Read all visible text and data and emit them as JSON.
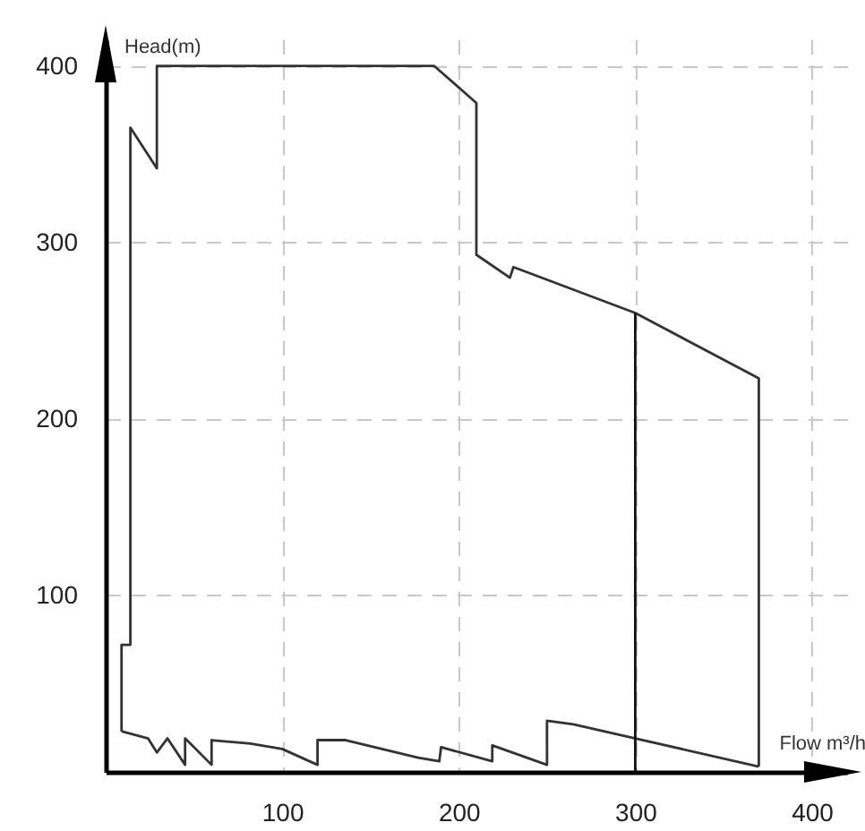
{
  "chart_data": {
    "type": "line",
    "xlabel": "Flow m³/h",
    "ylabel": "Head(m)",
    "xlim": [
      0,
      420
    ],
    "ylim": [
      0,
      415
    ],
    "xticks": [
      100,
      200,
      300,
      400
    ],
    "yticks": [
      100,
      200,
      300,
      400
    ],
    "grid": true,
    "line_style": "solid",
    "series": [
      {
        "color": "#333333",
        "x": [
          9,
          9,
          14,
          14,
          29,
          29,
          186,
          210,
          210,
          229,
          231,
          300,
          370,
          370
        ],
        "values": [
          23,
          72,
          72,
          365,
          342,
          400,
          400,
          379,
          293,
          280,
          286,
          260,
          223,
          3
        ]
      },
      {
        "color": "#333333",
        "x": [
          9,
          24,
          29,
          35,
          45,
          45,
          60,
          60,
          82,
          100,
          120,
          120,
          136,
          177,
          189,
          190,
          219,
          219,
          250,
          250,
          265,
          300,
          370
        ],
        "values": [
          23,
          19,
          11,
          19,
          4,
          19,
          4,
          18,
          16,
          13,
          4,
          18,
          18,
          8,
          6,
          14,
          6,
          15,
          4,
          29,
          27,
          19,
          3
        ]
      },
      {
        "color": "#111111",
        "x": [
          300,
          300
        ],
        "values": [
          0,
          260
        ]
      }
    ]
  }
}
